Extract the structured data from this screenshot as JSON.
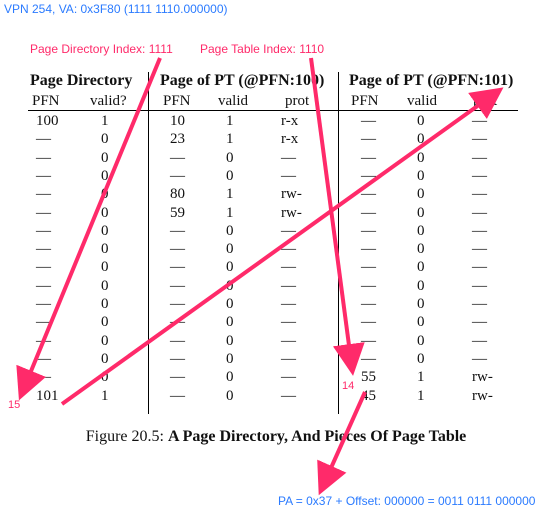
{
  "annotations": {
    "vpn": "VPN 254, VA: 0x3F80 (1111 1110.000000)",
    "pdi": "Page Directory Index: 1111",
    "pti": "Page Table Index: 1110",
    "marker15": "15",
    "marker14": "14",
    "pa": "PA = 0x37 + Offset: 000000 = 0011 0111 000000"
  },
  "headers": {
    "pd": "Page Directory",
    "pt100": "Page of PT (@PFN:100)",
    "pt101": "Page of PT (@PFN:101)",
    "pd_cols": [
      "PFN",
      "valid?"
    ],
    "pt100_cols": [
      "PFN",
      "valid",
      "prot"
    ],
    "pt101_cols": [
      "PFN",
      "valid",
      "prot"
    ]
  },
  "rows": [
    [
      "100",
      "1",
      "10",
      "1",
      "r-x",
      "—",
      "0",
      "—"
    ],
    [
      "—",
      "0",
      "23",
      "1",
      "r-x",
      "—",
      "0",
      "—"
    ],
    [
      "—",
      "0",
      "—",
      "0",
      "—",
      "—",
      "0",
      "—"
    ],
    [
      "—",
      "0",
      "—",
      "0",
      "—",
      "—",
      "0",
      "—"
    ],
    [
      "—",
      "0",
      "80",
      "1",
      "rw-",
      "—",
      "0",
      "—"
    ],
    [
      "—",
      "0",
      "59",
      "1",
      "rw-",
      "—",
      "0",
      "—"
    ],
    [
      "—",
      "0",
      "—",
      "0",
      "—",
      "—",
      "0",
      "—"
    ],
    [
      "—",
      "0",
      "—",
      "0",
      "—",
      "—",
      "0",
      "—"
    ],
    [
      "—",
      "0",
      "—",
      "0",
      "—",
      "—",
      "0",
      "—"
    ],
    [
      "—",
      "0",
      "—",
      "0",
      "—",
      "—",
      "0",
      "—"
    ],
    [
      "—",
      "0",
      "—",
      "0",
      "—",
      "—",
      "0",
      "—"
    ],
    [
      "—",
      "0",
      "—",
      "0",
      "—",
      "—",
      "0",
      "—"
    ],
    [
      "—",
      "0",
      "—",
      "0",
      "—",
      "—",
      "0",
      "—"
    ],
    [
      "—",
      "0",
      "—",
      "0",
      "—",
      "—",
      "0",
      "—"
    ],
    [
      "—",
      "0",
      "—",
      "0",
      "—",
      "55",
      "1",
      "rw-"
    ],
    [
      "101",
      "1",
      "—",
      "0",
      "—",
      "45",
      "1",
      "rw-"
    ]
  ],
  "caption": {
    "prefix": "Figure 20.5: ",
    "title": "A Page Directory, And Pieces Of Page Table"
  },
  "colors": {
    "annotation_blue": "#2b7bff",
    "annotation_pink": "#ff2a6a"
  }
}
